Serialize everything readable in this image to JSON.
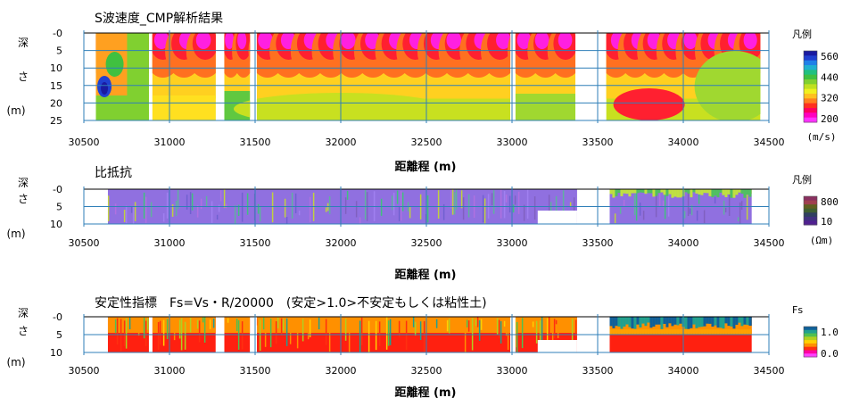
{
  "chart_data": [
    {
      "type": "heatmap",
      "title": "S波速度_CMP解析結果",
      "ylabel": [
        "深",
        "さ",
        "(m)"
      ],
      "xlabel": "距離程 (m)",
      "xlim": [
        30500,
        34500
      ],
      "xticks": [
        30500,
        31000,
        31500,
        32000,
        32500,
        33000,
        33500,
        34000,
        34500
      ],
      "ylim": [
        0,
        25
      ],
      "yticks": [
        0,
        5,
        10,
        15,
        20,
        25
      ],
      "ytick_labels": [
        "-0",
        "5",
        "10",
        "15",
        "20",
        "25"
      ],
      "grid": "horizontal",
      "segments": [
        {
          "from": 30570,
          "to": 30880
        },
        {
          "from": 30900,
          "to": 31270
        },
        {
          "from": 31320,
          "to": 31470
        },
        {
          "from": 31510,
          "to": 32990
        },
        {
          "from": 33020,
          "to": 33370
        },
        {
          "from": 33550,
          "to": 34450
        }
      ],
      "legend": {
        "title": "凡例",
        "ticks": [
          "560",
          "440",
          "320",
          "200"
        ],
        "unit": "(m/s)",
        "colors": [
          "#1a1aa0",
          "#2040d0",
          "#2080e8",
          "#20b0d0",
          "#20c080",
          "#40c040",
          "#80d030",
          "#c0e020",
          "#f0f020",
          "#ffc020",
          "#ff8020",
          "#ff3020",
          "#ff0060",
          "#ff00c0",
          "#ff30ff"
        ]
      }
    },
    {
      "type": "heatmap",
      "title": "比抵抗",
      "ylabel": [
        "深",
        "さ",
        "(m)"
      ],
      "xlabel": "距離程 (m)",
      "xlim": [
        30500,
        34500
      ],
      "xticks": [
        30500,
        31000,
        31500,
        32000,
        32500,
        33000,
        33500,
        34000,
        34500
      ],
      "ylim": [
        0,
        10
      ],
      "yticks": [
        0,
        5,
        10
      ],
      "ytick_labels": [
        "-0",
        "5",
        "10"
      ],
      "grid": "horizontal",
      "segments": [
        {
          "from": 30640,
          "to": 33380
        },
        {
          "from": 33570,
          "to": 34400
        }
      ],
      "legend": {
        "title": "凡例",
        "ticks": [
          "800",
          "10"
        ],
        "unit": "(Ωm)",
        "colors": [
          "#8a3060",
          "#a04050",
          "#606020",
          "#406030",
          "#304060",
          "#403080",
          "#502090"
        ]
      }
    },
    {
      "type": "heatmap",
      "title": "安定性指標　Fs=Vs・R/20000　(安定>1.0>不安定もしくは粘性土)",
      "ylabel": [
        "深",
        "さ",
        "(m)"
      ],
      "xlabel": "距離程 (m)",
      "xlim": [
        30500,
        34500
      ],
      "xticks": [
        30500,
        31000,
        31500,
        32000,
        32500,
        33000,
        33500,
        34000,
        34500
      ],
      "ylim": [
        0,
        10
      ],
      "yticks": [
        0,
        5,
        10
      ],
      "ytick_labels": [
        "-0",
        "5",
        "10"
      ],
      "grid": "horizontal",
      "segments": [
        {
          "from": 30640,
          "to": 30880
        },
        {
          "from": 30900,
          "to": 31270
        },
        {
          "from": 31320,
          "to": 31470
        },
        {
          "from": 31510,
          "to": 32990
        },
        {
          "from": 33020,
          "to": 33380
        },
        {
          "from": 33570,
          "to": 34400
        }
      ],
      "legend": {
        "title": "Fs",
        "ticks": [
          "1.0",
          "0.0"
        ],
        "unit": "",
        "colors": [
          "#10609a",
          "#20a090",
          "#50c050",
          "#b0d020",
          "#ffd000",
          "#ff9000",
          "#ff3010",
          "#ff00a0",
          "#ff40ff"
        ]
      }
    }
  ]
}
